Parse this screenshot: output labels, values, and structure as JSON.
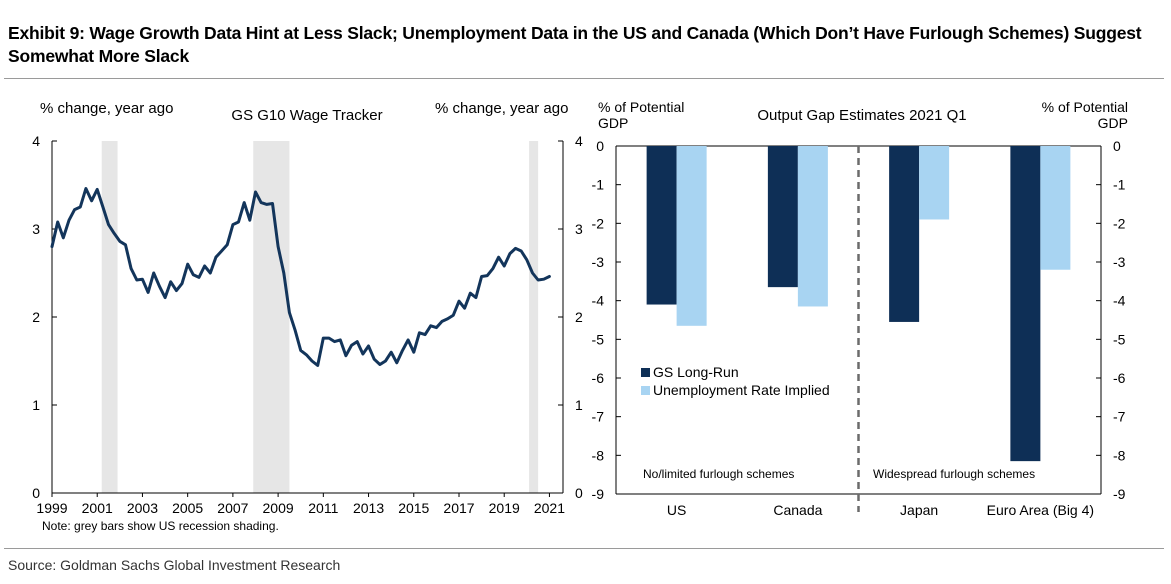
{
  "title": "Exhibit 9: Wage Growth Data Hint at Less Slack; Unemployment Data in the US and Canada (Which Don’t Have Furlough Schemes) Suggest Somewhat More Slack",
  "source": "Source: Goldman Sachs Global Investment Research",
  "chart_data": [
    {
      "type": "line",
      "title": "GS G10 Wage Tracker",
      "ylabel_left": "% change, year ago",
      "ylabel_right": "% change, year ago",
      "xlim": [
        1999.0,
        2021.6
      ],
      "ylim": [
        0,
        4
      ],
      "yticks": [
        0,
        1,
        2,
        3,
        4
      ],
      "xticks": [
        "1999",
        "2001",
        "2003",
        "2005",
        "2007",
        "2009",
        "2011",
        "2013",
        "2015",
        "2017",
        "2019",
        "2021"
      ],
      "note": "Note: grey bars show US recession shading.",
      "recessions": [
        [
          2001.2,
          2001.9
        ],
        [
          2007.9,
          2009.5
        ],
        [
          2020.1,
          2020.5
        ]
      ],
      "series": [
        {
          "name": "GS G10 Wage Tracker",
          "color": "#13355b",
          "x": [
            1999.0,
            1999.25,
            1999.5,
            1999.75,
            2000.0,
            2000.25,
            2000.5,
            2000.75,
            2001.0,
            2001.25,
            2001.5,
            2001.75,
            2002.0,
            2002.25,
            2002.5,
            2002.75,
            2003.0,
            2003.25,
            2003.5,
            2003.75,
            2004.0,
            2004.25,
            2004.5,
            2004.75,
            2005.0,
            2005.25,
            2005.5,
            2005.75,
            2006.0,
            2006.25,
            2006.5,
            2006.75,
            2007.0,
            2007.25,
            2007.5,
            2007.75,
            2008.0,
            2008.25,
            2008.5,
            2008.75,
            2009.0,
            2009.25,
            2009.5,
            2009.75,
            2010.0,
            2010.25,
            2010.5,
            2010.75,
            2011.0,
            2011.25,
            2011.5,
            2011.75,
            2012.0,
            2012.25,
            2012.5,
            2012.75,
            2013.0,
            2013.25,
            2013.5,
            2013.75,
            2014.0,
            2014.25,
            2014.5,
            2014.75,
            2015.0,
            2015.25,
            2015.5,
            2015.75,
            2016.0,
            2016.25,
            2016.5,
            2016.75,
            2017.0,
            2017.25,
            2017.5,
            2017.75,
            2018.0,
            2018.25,
            2018.5,
            2018.75,
            2019.0,
            2019.25,
            2019.5,
            2019.75,
            2020.0,
            2020.25,
            2020.5,
            2020.75,
            2021.0
          ],
          "values": [
            2.8,
            3.08,
            2.9,
            3.1,
            3.22,
            3.25,
            3.46,
            3.32,
            3.45,
            3.25,
            3.05,
            2.95,
            2.86,
            2.82,
            2.55,
            2.42,
            2.43,
            2.28,
            2.5,
            2.35,
            2.22,
            2.4,
            2.3,
            2.38,
            2.6,
            2.48,
            2.45,
            2.58,
            2.5,
            2.68,
            2.75,
            2.82,
            3.05,
            3.08,
            3.3,
            3.1,
            3.42,
            3.3,
            3.28,
            3.29,
            2.8,
            2.5,
            2.05,
            1.85,
            1.62,
            1.57,
            1.5,
            1.45,
            1.76,
            1.76,
            1.72,
            1.74,
            1.56,
            1.68,
            1.72,
            1.58,
            1.67,
            1.52,
            1.46,
            1.5,
            1.6,
            1.48,
            1.62,
            1.74,
            1.6,
            1.82,
            1.8,
            1.9,
            1.88,
            1.95,
            1.98,
            2.02,
            2.18,
            2.1,
            2.27,
            2.22,
            2.46,
            2.47,
            2.55,
            2.68,
            2.58,
            2.72,
            2.78,
            2.75,
            2.65,
            2.5,
            2.42,
            2.43,
            2.46
          ]
        }
      ]
    },
    {
      "type": "bar",
      "title": "Output Gap Estimates 2021 Q1",
      "ylabel_left": [
        "% of Potential",
        "GDP"
      ],
      "ylabel_right": [
        "% of Potential",
        "GDP"
      ],
      "ylim": [
        -9,
        0
      ],
      "yticks": [
        0,
        -1,
        -2,
        -3,
        -4,
        -5,
        -6,
        -7,
        -8,
        -9
      ],
      "categories": [
        "US",
        "Canada",
        "Japan",
        "Euro Area (Big 4)"
      ],
      "series": [
        {
          "name": "GS Long-Run",
          "color": "#0e2f56",
          "values": [
            -4.1,
            -3.65,
            -4.55,
            -8.15
          ]
        },
        {
          "name": "Unemployment Rate Implied",
          "color": "#a8d4f2",
          "values": [
            -4.65,
            -4.15,
            -1.9,
            -3.2
          ]
        }
      ],
      "annotations": [
        "No/limited furlough schemes",
        "Widespread furlough schemes"
      ]
    }
  ]
}
